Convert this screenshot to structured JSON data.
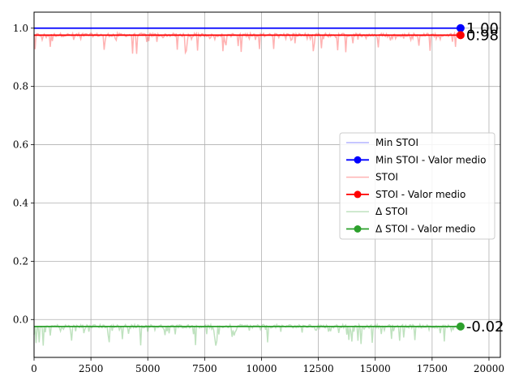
{
  "chart_data": {
    "type": "line",
    "title": "",
    "xlabel": "",
    "ylabel": "",
    "xlim": [
      0,
      20500
    ],
    "ylim": [
      -0.13,
      1.055
    ],
    "grid": true,
    "legend_position": "right",
    "x_ticks": [
      0,
      2500,
      5000,
      7500,
      10000,
      12500,
      15000,
      17500,
      20000
    ],
    "x_tick_labels": [
      "0",
      "2500",
      "5000",
      "7500",
      "10000",
      "12500",
      "15000",
      "17500",
      "20000"
    ],
    "y_ticks": [
      0.0,
      0.2,
      0.4,
      0.6,
      0.8,
      1.0
    ],
    "y_tick_labels": [
      "0.0",
      "0.2",
      "0.4",
      "0.6",
      "0.8",
      "1.0"
    ],
    "x_max": 18750,
    "series": [
      {
        "name": "Min STOI",
        "kind": "raw",
        "color": "#0000ff",
        "alpha": 0.3,
        "mean": 1.0,
        "noise": "flat"
      },
      {
        "name": "Min STOI - Valor medio",
        "kind": "mean",
        "color": "#0000ff",
        "value": 1.0,
        "end_label": "1.00"
      },
      {
        "name": "STOI",
        "kind": "raw",
        "color": "#ff0000",
        "alpha": 0.3,
        "mean": 0.978,
        "noise": "dips"
      },
      {
        "name": "STOI - Valor medio",
        "kind": "mean",
        "color": "#ff0000",
        "value": 0.976,
        "end_label": "0.98"
      },
      {
        "name": "Δ STOI",
        "kind": "raw",
        "color": "#2ca02c",
        "alpha": 0.3,
        "mean": -0.022,
        "noise": "dips"
      },
      {
        "name": "Δ STOI - Valor medio",
        "kind": "mean",
        "color": "#2ca02c",
        "value": -0.024,
        "end_label": "-0.02"
      }
    ]
  }
}
